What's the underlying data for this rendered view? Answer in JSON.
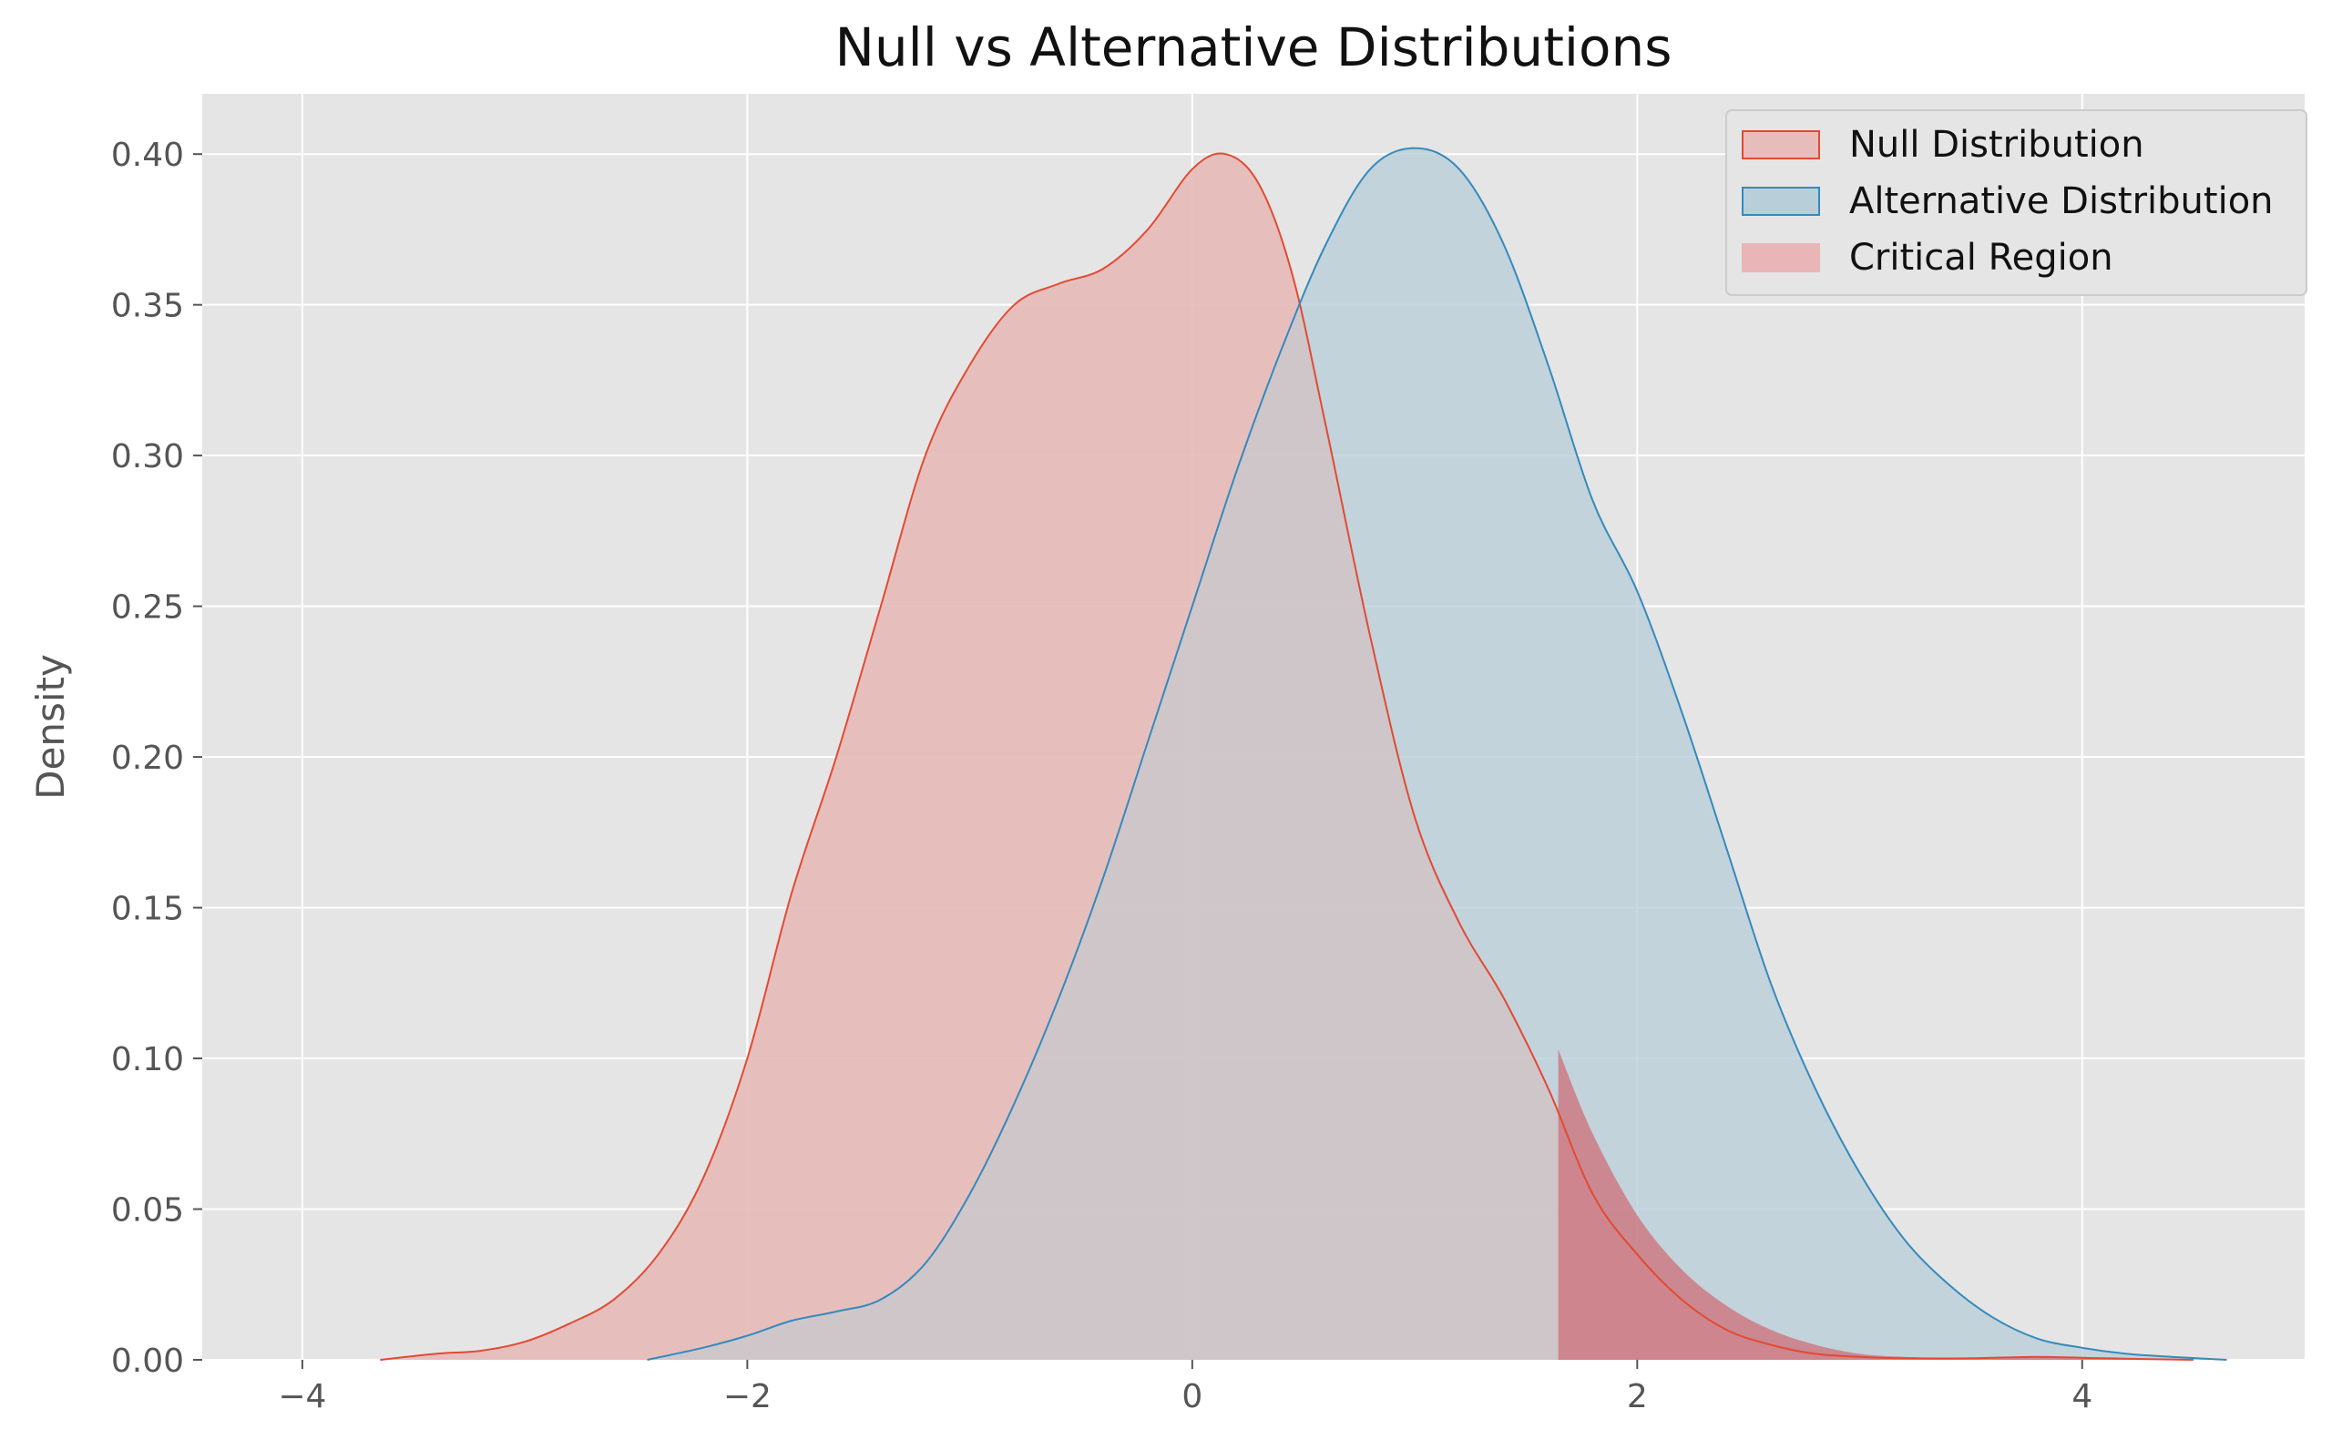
{
  "chart_data": {
    "type": "area",
    "title": "Null vs Alternative Distributions",
    "xlabel": "",
    "ylabel": "Density",
    "xlim": [
      -4.45,
      5.0
    ],
    "ylim": [
      0,
      0.42
    ],
    "xticks": [
      -4,
      -2,
      0,
      2,
      4
    ],
    "xtick_labels": [
      "−4",
      "−2",
      "0",
      "2",
      "4"
    ],
    "yticks": [
      0.0,
      0.05,
      0.1,
      0.15,
      0.2,
      0.25,
      0.3,
      0.35,
      0.4
    ],
    "ytick_labels": [
      "0.00",
      "0.05",
      "0.10",
      "0.15",
      "0.20",
      "0.25",
      "0.30",
      "0.35",
      "0.40"
    ],
    "grid": true,
    "legend_position": "top-right",
    "series": [
      {
        "name": "Null Distribution",
        "fill_color": "#E6BDBA",
        "line_color": "#E24A33",
        "x": [
          -3.65,
          -3.4,
          -3.2,
          -3.0,
          -2.8,
          -2.6,
          -2.4,
          -2.2,
          -2.0,
          -1.8,
          -1.6,
          -1.4,
          -1.2,
          -1.0,
          -0.8,
          -0.6,
          -0.4,
          -0.2,
          0.0,
          0.15,
          0.3,
          0.45,
          0.6,
          0.8,
          1.0,
          1.2,
          1.4,
          1.6,
          1.8,
          2.0,
          2.2,
          2.4,
          2.6,
          2.8,
          3.0,
          3.2,
          3.5,
          3.8,
          4.1,
          4.5
        ],
        "y": [
          0.0,
          0.002,
          0.003,
          0.006,
          0.012,
          0.02,
          0.035,
          0.06,
          0.1,
          0.155,
          0.2,
          0.25,
          0.3,
          0.33,
          0.35,
          0.357,
          0.362,
          0.375,
          0.395,
          0.4,
          0.39,
          0.36,
          0.31,
          0.24,
          0.18,
          0.145,
          0.12,
          0.09,
          0.055,
          0.035,
          0.02,
          0.01,
          0.005,
          0.002,
          0.001,
          0.0005,
          0.0005,
          0.001,
          0.0005,
          0.0
        ]
      },
      {
        "name": "Alternative Distribution",
        "fill_color": "#B8CED9",
        "line_color": "#348ABD",
        "x": [
          -2.45,
          -2.2,
          -2.0,
          -1.8,
          -1.6,
          -1.4,
          -1.2,
          -1.0,
          -0.8,
          -0.6,
          -0.4,
          -0.2,
          0.0,
          0.2,
          0.4,
          0.6,
          0.8,
          1.0,
          1.2,
          1.4,
          1.6,
          1.8,
          2.0,
          2.2,
          2.4,
          2.6,
          2.8,
          3.0,
          3.2,
          3.4,
          3.6,
          3.8,
          4.0,
          4.2,
          4.4,
          4.65
        ],
        "y": [
          0.0,
          0.004,
          0.008,
          0.013,
          0.016,
          0.02,
          0.032,
          0.055,
          0.085,
          0.12,
          0.16,
          0.205,
          0.25,
          0.295,
          0.335,
          0.37,
          0.395,
          0.402,
          0.395,
          0.37,
          0.33,
          0.285,
          0.255,
          0.215,
          0.17,
          0.125,
          0.09,
          0.062,
          0.04,
          0.025,
          0.014,
          0.007,
          0.004,
          0.002,
          0.001,
          0.0
        ]
      }
    ],
    "critical_region": {
      "name": "Critical Region",
      "fill_color": "#CD6F78",
      "threshold": 1.645,
      "x": [
        1.645,
        1.8,
        2.0,
        2.2,
        2.4,
        2.6,
        2.8,
        3.0,
        3.2,
        3.5,
        3.8,
        4.1,
        4.5
      ],
      "y": [
        0.103,
        0.075,
        0.048,
        0.03,
        0.018,
        0.01,
        0.005,
        0.002,
        0.001,
        0.0005,
        0.001,
        0.0005,
        0.0
      ]
    },
    "legend": [
      {
        "label": "Null Distribution",
        "fill_color": "#E6BDBA",
        "border_color": "#E24A33"
      },
      {
        "label": "Alternative Distribution",
        "fill_color": "#B8CED9",
        "border_color": "#348ABD"
      },
      {
        "label": "Critical Region",
        "fill_color": "#E9B5B7",
        "border_color": "#E9B5B7"
      }
    ],
    "colors": {
      "plot_background": "#E5E5E5",
      "grid": "#FFFFFF",
      "tick_text": "#555555"
    }
  }
}
